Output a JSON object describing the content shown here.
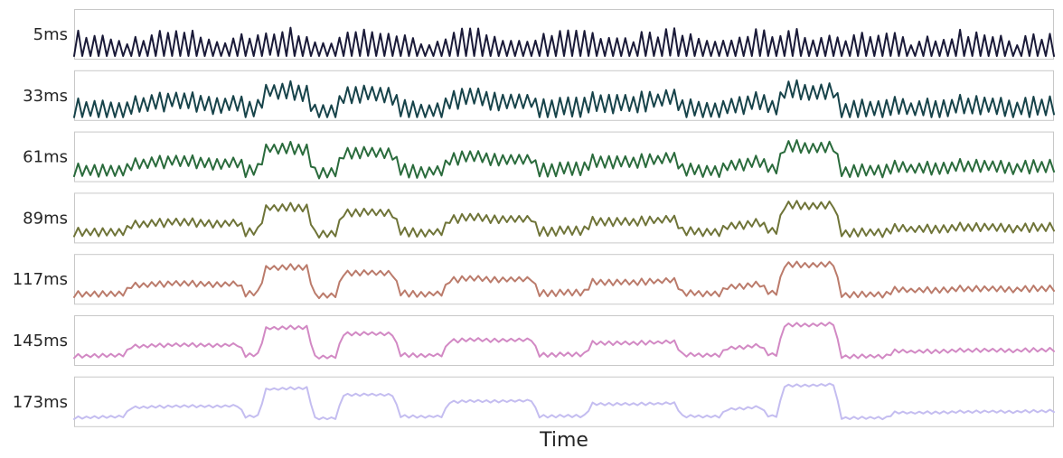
{
  "chart_data": {
    "type": "line",
    "title": "",
    "xlabel": "Time",
    "ylabel": "",
    "grid": false,
    "legend": "none",
    "x_ticks_visible": false,
    "y_ticks_visible": false,
    "x_range": [
      0,
      240
    ],
    "y_range": [
      0,
      1
    ],
    "envelope_points": [
      {
        "x": 0,
        "level": 0.05
      },
      {
        "x": 12,
        "level": 0.1
      },
      {
        "x": 14,
        "level": 0.35
      },
      {
        "x": 40,
        "level": 0.4
      },
      {
        "x": 42,
        "level": 0.1
      },
      {
        "x": 45,
        "level": 0.1
      },
      {
        "x": 47,
        "level": 0.85
      },
      {
        "x": 57,
        "level": 0.9
      },
      {
        "x": 59,
        "level": 0.05
      },
      {
        "x": 64,
        "level": 0.05
      },
      {
        "x": 66,
        "level": 0.7
      },
      {
        "x": 78,
        "level": 0.7
      },
      {
        "x": 80,
        "level": 0.1
      },
      {
        "x": 90,
        "level": 0.1
      },
      {
        "x": 92,
        "level": 0.5
      },
      {
        "x": 112,
        "level": 0.55
      },
      {
        "x": 114,
        "level": 0.1
      },
      {
        "x": 125,
        "level": 0.1
      },
      {
        "x": 127,
        "level": 0.45
      },
      {
        "x": 147,
        "level": 0.45
      },
      {
        "x": 149,
        "level": 0.1
      },
      {
        "x": 158,
        "level": 0.1
      },
      {
        "x": 160,
        "level": 0.3
      },
      {
        "x": 168,
        "level": 0.35
      },
      {
        "x": 170,
        "level": 0.1
      },
      {
        "x": 172,
        "level": 0.1
      },
      {
        "x": 174,
        "level": 0.95
      },
      {
        "x": 186,
        "level": 1.0
      },
      {
        "x": 188,
        "level": 0.05
      },
      {
        "x": 199,
        "level": 0.05
      },
      {
        "x": 201,
        "level": 0.2
      },
      {
        "x": 240,
        "level": 0.25
      }
    ],
    "series": [
      {
        "label": "5ms",
        "color": "#1a1a38",
        "oscillation": 0.85,
        "envelope_weight": 0.12
      },
      {
        "label": "33ms",
        "color": "#17434a",
        "oscillation": 0.45,
        "envelope_weight": 0.5
      },
      {
        "label": "61ms",
        "color": "#2a6b3c",
        "oscillation": 0.3,
        "envelope_weight": 0.62
      },
      {
        "label": "89ms",
        "color": "#6f7438",
        "oscillation": 0.2,
        "envelope_weight": 0.7
      },
      {
        "label": "117ms",
        "color": "#bb7b6b",
        "oscillation": 0.14,
        "envelope_weight": 0.76
      },
      {
        "label": "145ms",
        "color": "#d289c4",
        "oscillation": 0.09,
        "envelope_weight": 0.8
      },
      {
        "label": "173ms",
        "color": "#c4bdf0",
        "oscillation": 0.06,
        "envelope_weight": 0.82
      }
    ]
  }
}
